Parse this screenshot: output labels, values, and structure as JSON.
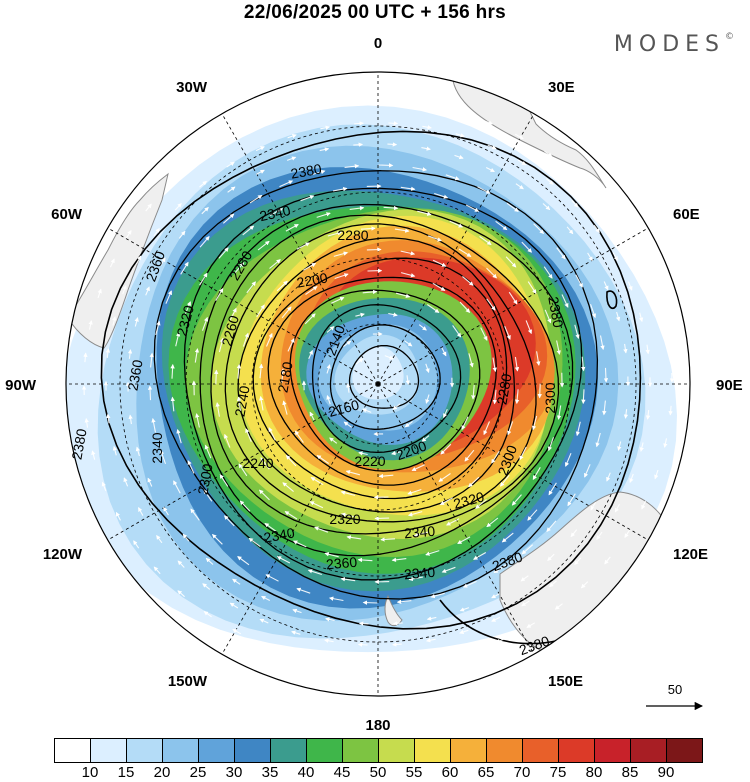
{
  "header": {
    "title": "22/06/2025  00 UTC  + 156 hrs",
    "brand": "MODES",
    "brand_mark": "©"
  },
  "map": {
    "projection": "polar-stereographic-south",
    "longitude_labels": [
      "0",
      "30E",
      "60E",
      "90E",
      "120E",
      "150E",
      "180",
      "150W",
      "120W",
      "90W",
      "60W",
      "30W"
    ],
    "contour_values": [
      2140,
      2160,
      2180,
      2200,
      2220,
      2240,
      2260,
      2280,
      2300,
      2320,
      2340,
      2360,
      2380
    ],
    "contour_labels_shown": [
      "2380",
      "2340",
      "2360",
      "2280",
      "2280",
      "2200",
      "2260",
      "2320",
      "2140",
      "2180",
      "2360",
      "2240",
      "2160",
      "2340",
      "2300",
      "2220",
      "2200",
      "2240",
      "2300",
      "2320",
      "2320",
      "2340",
      "2340",
      "2360",
      "2380",
      "2380",
      "2280",
      "2300",
      "2340",
      "2380",
      "2380"
    ],
    "reference_vector_label": "50",
    "land_color": "#f0f0f0",
    "coast_color": "#888888"
  },
  "legend": {
    "ticks": [
      "10",
      "15",
      "20",
      "25",
      "30",
      "35",
      "40",
      "45",
      "50",
      "55",
      "60",
      "65",
      "70",
      "75",
      "80",
      "85",
      "90"
    ],
    "colors": [
      "#ffffff",
      "#dcefff",
      "#b4dcf7",
      "#8cc4ec",
      "#60a3da",
      "#3f86c4",
      "#3b9c8e",
      "#3fb64a",
      "#7dc442",
      "#c6dc4e",
      "#f4e04e",
      "#f5b03a",
      "#f08a2e",
      "#e8602a",
      "#dc3a28",
      "#c8222a",
      "#a81e24",
      "#7c1718"
    ]
  }
}
